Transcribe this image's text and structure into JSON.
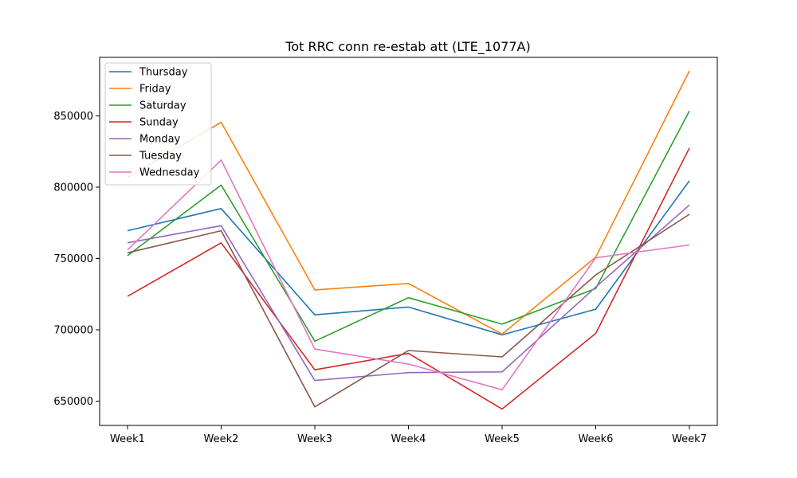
{
  "chart_data": {
    "type": "line",
    "title": "Tot RRC conn re-estab att (LTE_1077A)",
    "xlabel": "",
    "ylabel": "",
    "categories": [
      "Week1",
      "Week2",
      "Week3",
      "Week4",
      "Week5",
      "Week6",
      "Week7"
    ],
    "ylim": [
      633000,
      891000
    ],
    "yticks": [
      650000,
      700000,
      750000,
      800000,
      850000
    ],
    "legend_position": "top-left",
    "grid": false,
    "series": [
      {
        "name": "Thursday",
        "color": "#1f77b4",
        "values": [
          769500,
          785000,
          710500,
          716000,
          696500,
          714500,
          804500
        ]
      },
      {
        "name": "Friday",
        "color": "#ff7f0e",
        "values": [
          807000,
          845500,
          728000,
          732500,
          697000,
          751000,
          881500
        ]
      },
      {
        "name": "Saturday",
        "color": "#2ca02c",
        "values": [
          752000,
          801500,
          692000,
          722500,
          704000,
          729000,
          853500
        ]
      },
      {
        "name": "Sunday",
        "color": "#d62728",
        "values": [
          723500,
          761000,
          672000,
          683500,
          644500,
          697500,
          827500
        ]
      },
      {
        "name": "Monday",
        "color": "#9467bd",
        "values": [
          761000,
          773000,
          664500,
          670000,
          670500,
          730000,
          787500
        ]
      },
      {
        "name": "Tuesday",
        "color": "#8c564b",
        "values": [
          754000,
          769500,
          646000,
          685500,
          681000,
          738500,
          781000
        ]
      },
      {
        "name": "Wednesday",
        "color": "#e377c2",
        "values": [
          756000,
          819000,
          686500,
          676000,
          658000,
          750500,
          759500
        ]
      }
    ]
  }
}
